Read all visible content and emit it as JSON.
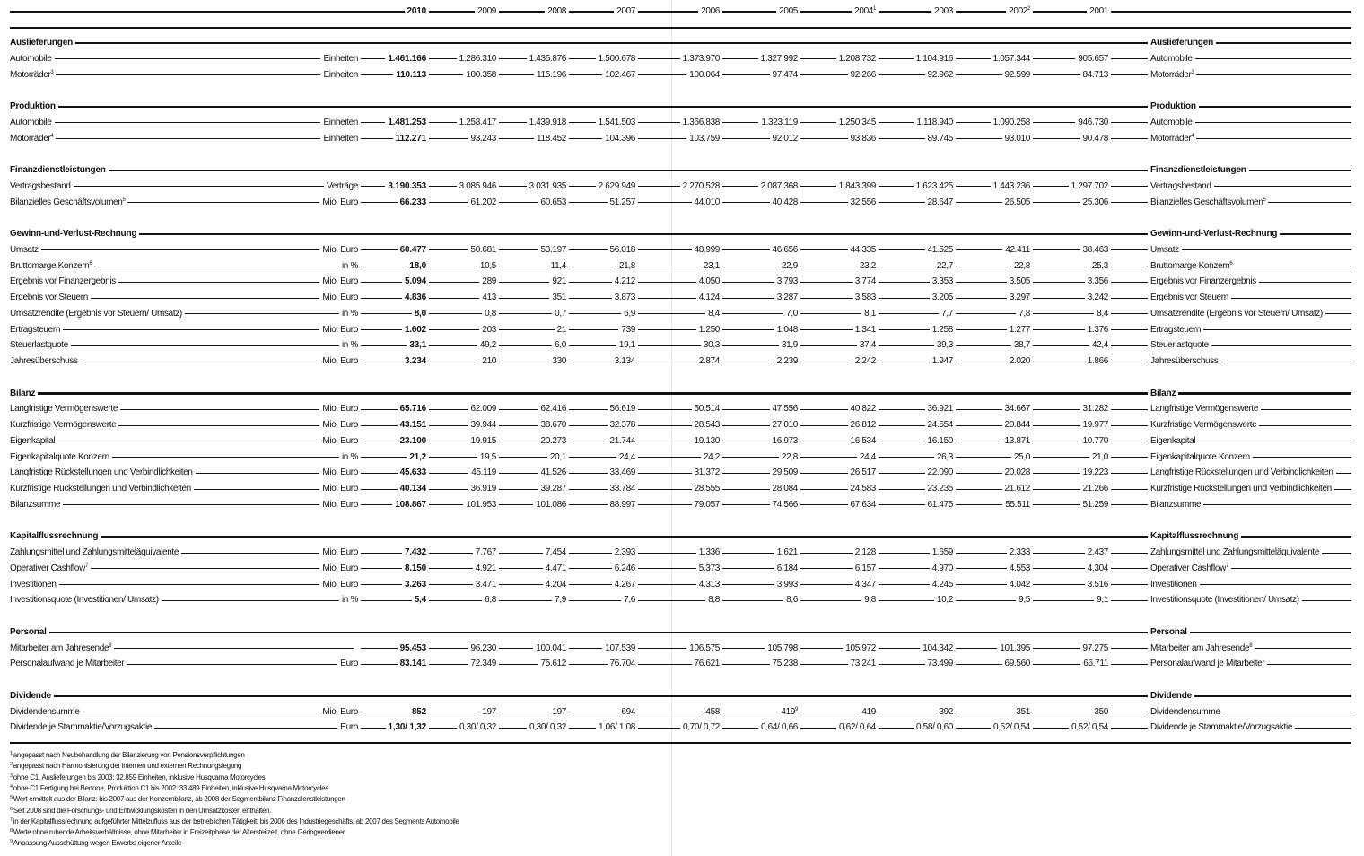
{
  "header": {
    "years": [
      {
        "label": "2010",
        "sup": ""
      },
      {
        "label": "2009",
        "sup": ""
      },
      {
        "label": "2008",
        "sup": ""
      },
      {
        "label": "2007",
        "sup": ""
      },
      {
        "label": "2006",
        "sup": ""
      },
      {
        "label": "2005",
        "sup": ""
      },
      {
        "label": "2004",
        "sup": "1"
      },
      {
        "label": "2003",
        "sup": ""
      },
      {
        "label": "2002",
        "sup": "2"
      },
      {
        "label": "2001",
        "sup": ""
      }
    ]
  },
  "sections": [
    {
      "title": "Auslieferungen",
      "rows": [
        {
          "label": "Automobile",
          "sup": "",
          "unit": "Einheiten",
          "values": [
            "1.461.166",
            "1.286.310",
            "1.435.876",
            "1.500.678",
            "1.373.970",
            "1.327.992",
            "1.208.732",
            "1.104.916",
            "1.057.344",
            "905.657"
          ]
        },
        {
          "label": "Motorräder",
          "sup": "3",
          "unit": "Einheiten",
          "values": [
            "110.113",
            "100.358",
            "115.196",
            "102.467",
            "100.064",
            "97.474",
            "92.266",
            "92.962",
            "92.599",
            "84.713"
          ]
        }
      ]
    },
    {
      "title": "Produktion",
      "rows": [
        {
          "label": "Automobile",
          "sup": "",
          "unit": "Einheiten",
          "values": [
            "1.481.253",
            "1.258.417",
            "1.439.918",
            "1.541.503",
            "1.366.838",
            "1.323.119",
            "1.250.345",
            "1.118.940",
            "1.090.258",
            "946.730"
          ]
        },
        {
          "label": "Motorräder",
          "sup": "4",
          "unit": "Einheiten",
          "values": [
            "112.271",
            "93.243",
            "118.452",
            "104.396",
            "103.759",
            "92.012",
            "93.836",
            "89.745",
            "93.010",
            "90.478"
          ]
        }
      ]
    },
    {
      "title": "Finanzdienstleistungen",
      "rows": [
        {
          "label": "Vertragsbestand",
          "sup": "",
          "unit": "Verträge",
          "values": [
            "3.190.353",
            "3.085.946",
            "3.031.935",
            "2.629.949",
            "2.270.528",
            "2.087.368",
            "1.843.399",
            "1.623.425",
            "1.443.236",
            "1.297.702"
          ]
        },
        {
          "label": "Bilanzielles Geschäftsvolumen",
          "sup": "5",
          "unit": "Mio. Euro",
          "values": [
            "66.233",
            "61.202",
            "60.653",
            "51.257",
            "44.010",
            "40.428",
            "32.556",
            "28.647",
            "26.505",
            "25.306"
          ]
        }
      ]
    },
    {
      "title": "Gewinn-und-Verlust-Rechnung",
      "rows": [
        {
          "label": "Umsatz",
          "sup": "",
          "unit": "Mio. Euro",
          "values": [
            "60.477",
            "50.681",
            "53.197",
            "56.018",
            "48.999",
            "46.656",
            "44.335",
            "41.525",
            "42.411",
            "38.463"
          ]
        },
        {
          "label": "Bruttomarge Konzern",
          "sup": "6",
          "unit": "in %",
          "values": [
            "18,0",
            "10,5",
            "11,4",
            "21,8",
            "23,1",
            "22,9",
            "23,2",
            "22,7",
            "22,8",
            "25,3"
          ]
        },
        {
          "label": "Ergebnis vor Finanzergebnis",
          "sup": "",
          "unit": "Mio. Euro",
          "values": [
            "5.094",
            "289",
            "921",
            "4.212",
            "4.050",
            "3.793",
            "3.774",
            "3.353",
            "3.505",
            "3.356"
          ]
        },
        {
          "label": "Ergebnis vor Steuern",
          "sup": "",
          "unit": "Mio. Euro",
          "values": [
            "4.836",
            "413",
            "351",
            "3.873",
            "4.124",
            "3.287",
            "3.583",
            "3.205",
            "3.297",
            "3.242"
          ]
        },
        {
          "label": "Umsatzrendite (Ergebnis vor Steuern/ Umsatz)",
          "sup": "",
          "unit": "in %",
          "values": [
            "8,0",
            "0,8",
            "0,7",
            "6,9",
            "8,4",
            "7,0",
            "8,1",
            "7,7",
            "7,8",
            "8,4"
          ]
        },
        {
          "label": "Ertragsteuern",
          "sup": "",
          "unit": "Mio. Euro",
          "values": [
            "1.602",
            "203",
            "21",
            "739",
            "1.250",
            "1.048",
            "1.341",
            "1.258",
            "1.277",
            "1.376"
          ]
        },
        {
          "label": "Steuerlastquote",
          "sup": "",
          "unit": "in %",
          "values": [
            "33,1",
            "49,2",
            "6,0",
            "19,1",
            "30,3",
            "31,9",
            "37,4",
            "39,3",
            "38,7",
            "42,4"
          ]
        },
        {
          "label": "Jahresüberschuss",
          "sup": "",
          "unit": "Mio. Euro",
          "values": [
            "3.234",
            "210",
            "330",
            "3.134",
            "2.874",
            "2.239",
            "2.242",
            "1.947",
            "2.020",
            "1.866"
          ]
        }
      ]
    },
    {
      "title": "Bilanz",
      "rows": [
        {
          "label": "Langfristige Vermögenswerte",
          "sup": "",
          "unit": "Mio. Euro",
          "values": [
            "65.716",
            "62.009",
            "62.416",
            "56.619",
            "50.514",
            "47.556",
            "40.822",
            "36.921",
            "34.667",
            "31.282"
          ]
        },
        {
          "label": "Kurzfristige Vermögenswerte",
          "sup": "",
          "unit": "Mio. Euro",
          "values": [
            "43.151",
            "39.944",
            "38.670",
            "32.378",
            "28.543",
            "27.010",
            "26.812",
            "24.554",
            "20.844",
            "19.977"
          ]
        },
        {
          "label": "Eigenkapital",
          "sup": "",
          "unit": "Mio. Euro",
          "values": [
            "23.100",
            "19.915",
            "20.273",
            "21.744",
            "19.130",
            "16.973",
            "16.534",
            "16.150",
            "13.871",
            "10.770"
          ]
        },
        {
          "label": "Eigenkapitalquote Konzern",
          "sup": "",
          "unit": "in %",
          "values": [
            "21,2",
            "19,5",
            "20,1",
            "24,4",
            "24,2",
            "22,8",
            "24,4",
            "26,3",
            "25,0",
            "21,0"
          ]
        },
        {
          "label": "Langfristige Rückstellungen und Verbindlichkeiten",
          "sup": "",
          "unit": "Mio. Euro",
          "values": [
            "45.633",
            "45.119",
            "41.526",
            "33.469",
            "31.372",
            "29.509",
            "26.517",
            "22.090",
            "20.028",
            "19.223"
          ]
        },
        {
          "label": "Kurzfristige Rückstellungen und Verbindlichkeiten",
          "sup": "",
          "unit": "Mio. Euro",
          "values": [
            "40.134",
            "36.919",
            "39.287",
            "33.784",
            "28.555",
            "28.084",
            "24.583",
            "23.235",
            "21.612",
            "21.266"
          ]
        },
        {
          "label": "Bilanzsumme",
          "sup": "",
          "unit": "Mio. Euro",
          "values": [
            "108.867",
            "101.953",
            "101.086",
            "88.997",
            "79.057",
            "74.566",
            "67.634",
            "61.475",
            "55.511",
            "51.259"
          ]
        }
      ]
    },
    {
      "title": "Kapitalflussrechnung",
      "rows": [
        {
          "label": "Zahlungsmittel und Zahlungsmitteläquivalente",
          "sup": "",
          "unit": "Mio. Euro",
          "values": [
            "7.432",
            "7.767",
            "7.454",
            "2.393",
            "1.336",
            "1.621",
            "2.128",
            "1.659",
            "2.333",
            "2.437"
          ]
        },
        {
          "label": "Operativer Cashflow",
          "sup": "7",
          "unit": "Mio. Euro",
          "values": [
            "8.150",
            "4.921",
            "4.471",
            "6.246",
            "5.373",
            "6.184",
            "6.157",
            "4.970",
            "4.553",
            "4.304"
          ]
        },
        {
          "label": "Investitionen",
          "sup": "",
          "unit": "Mio. Euro",
          "values": [
            "3.263",
            "3.471",
            "4.204",
            "4.267",
            "4.313",
            "3.993",
            "4.347",
            "4.245",
            "4.042",
            "3.516"
          ]
        },
        {
          "label": "Investitionsquote (Investitionen/ Umsatz)",
          "sup": "",
          "unit": "in %",
          "values": [
            "5,4",
            "6,8",
            "7,9",
            "7,6",
            "8,8",
            "8,6",
            "9,8",
            "10,2",
            "9,5",
            "9,1"
          ]
        }
      ]
    },
    {
      "title": "Personal",
      "rows": [
        {
          "label": "Mitarbeiter am Jahresende",
          "sup": "8",
          "unit": "",
          "values": [
            "95.453",
            "96.230",
            "100.041",
            "107.539",
            "106.575",
            "105.798",
            "105.972",
            "104.342",
            "101.395",
            "97.275"
          ]
        },
        {
          "label": "Personalaufwand je Mitarbeiter",
          "sup": "",
          "unit": "Euro",
          "values": [
            "83.141",
            "72.349",
            "75.612",
            "76.704",
            "76.621",
            "75.238",
            "73.241",
            "73.499",
            "69.560",
            "66.711"
          ]
        }
      ]
    },
    {
      "title": "Dividende",
      "rows": [
        {
          "label": "Dividendensumme",
          "sup": "",
          "unit": "Mio. Euro",
          "values": [
            "852",
            "197",
            "197",
            "694",
            "458",
            {
              "v": "419",
              "sup": "9"
            },
            "419",
            "392",
            "351",
            "350"
          ]
        },
        {
          "label": "Dividende je Stammaktie/Vorzugsaktie",
          "sup": "",
          "unit": "Euro",
          "values": [
            "1,30/ 1,32",
            "0,30/ 0,32",
            "0,30/ 0,32",
            "1,06/ 1,08",
            "0,70/ 0,72",
            "0,64/ 0,66",
            "0,62/ 0,64",
            "0,58/ 0,60",
            "0,52/ 0,54",
            "0,52/ 0,54"
          ]
        }
      ]
    }
  ],
  "footnotes": [
    {
      "num": "1",
      "text": "angepasst nach Neubehandlung der Bilanzierung von Pensionsverpflichtungen"
    },
    {
      "num": "2",
      "text": "angepasst nach Harmonisierung der internen und externen Rechnungslegung"
    },
    {
      "num": "3",
      "text": "ohne C1, Auslieferungen bis 2003: 32.859 Einheiten, inklusive Husqvarna Motorcycles"
    },
    {
      "num": "4",
      "text": "ohne C1 Fertigung bei Bertone, Produktion C1 bis 2002: 33.489 Einheiten, inklusive Husqvarna Motorcycles"
    },
    {
      "num": "5",
      "text": "Wert ermittelt aus der Bilanz: bis 2007 aus der Konzernbilanz, ab 2008 der Segmentbilanz Finanzdienstleistungen"
    },
    {
      "num": "6",
      "text": "Seit 2008 sind die Forschungs- und Entwicklungskosten in den Umsatzkosten enthalten."
    },
    {
      "num": "7",
      "text": "in der Kapitalflussrechnung aufgeführter Mittelzufluss aus der betrieblichen Tätigkeit: bis 2006 des Industriegeschäfts, ab 2007 des Segments Automobile"
    },
    {
      "num": "8",
      "text": "Werte ohne ruhende Arbeitsverhältnisse, ohne Mitarbeiter in Freizeitphase der Altersteilzeit, ohne Geringverdiener"
    },
    {
      "num": "9",
      "text": "Anpassung Ausschüttung wegen Erwerbs eigener Anteile"
    }
  ]
}
